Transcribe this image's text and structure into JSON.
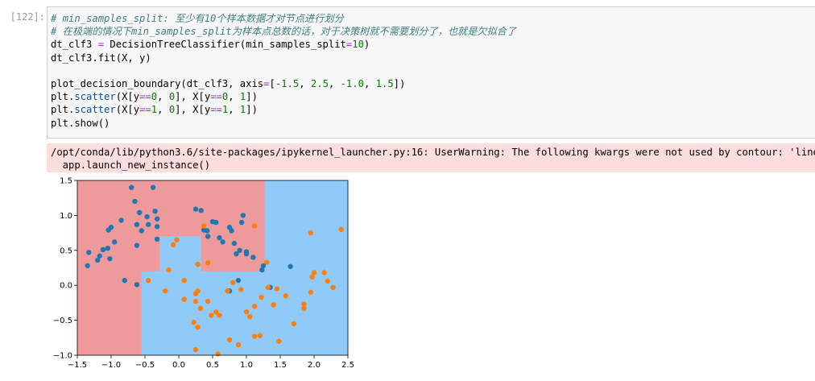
{
  "cell": {
    "prompt": "[122]:",
    "code_lines": {
      "l1": "# min_samples_split: 至少有10个样本数据才对节点进行划分",
      "l2": "# 在极端的情况下min_samples_split为样本点总数的话，对于决策树就不需要划分了，也就是欠拟合了",
      "l3a": "dt_clf3 ",
      "l3b": "=",
      "l3c": " DecisionTreeClassifier(min_samples_split",
      "l3d": "=",
      "l3e": "10",
      "l3f": ")",
      "l4": "dt_clf3.fit(X, y)",
      "l6a": "plot_decision_boundary(dt_clf3, axis",
      "l6b": "=",
      "l6c": "[",
      "l6d": "-1.5",
      "l6e": ", ",
      "l6f": "2.5",
      "l6g": ", ",
      "l6h": "-1.0",
      "l6i": ", ",
      "l6j": "1.5",
      "l6k": "])",
      "l7a": "plt.",
      "l7b": "scatter",
      "l7c": "(X[y",
      "l7d": "==",
      "l7e": "0",
      "l7f": ", ",
      "l7g": "0",
      "l7h": "], X[y",
      "l7i": "==",
      "l7j": "0",
      "l7k": ", ",
      "l7l": "1",
      "l7m": "])",
      "l8a": "plt.",
      "l8b": "scatter",
      "l8c": "(X[y",
      "l8d": "==",
      "l8e": "1",
      "l8f": ", ",
      "l8g": "0",
      "l8h": "], X[y",
      "l8i": "==",
      "l8j": "1",
      "l8k": ", ",
      "l8l": "1",
      "l8m": "])",
      "l9": "plt.show()"
    }
  },
  "stderr": {
    "line1": "/opt/conda/lib/python3.6/site-packages/ipykernel_launcher.py:16: UserWarning: The following kwargs were not used by contour: 'linewid",
    "line2": "  app.launch_new_instance()"
  },
  "colors": {
    "region0": "#ef9a9a",
    "region1": "#90caf9",
    "class0": "#1f77b4",
    "class1": "#ff7f0e"
  },
  "chart_data": {
    "type": "scatter",
    "xlim": [
      -1.5,
      2.5
    ],
    "ylim": [
      -1.0,
      1.5
    ],
    "xticks": [
      "−1.5",
      "−1.0",
      "−0.5",
      "0.0",
      "0.5",
      "1.0",
      "1.5",
      "2.0",
      "2.5"
    ],
    "yticks": [
      "−1.0",
      "−0.5",
      "0.0",
      "0.5",
      "1.0",
      "1.5"
    ],
    "xtick_values": [
      -1.5,
      -1.0,
      -0.5,
      0.0,
      0.5,
      1.0,
      1.5,
      2.0,
      2.5
    ],
    "ytick_values": [
      -1.0,
      -0.5,
      0.0,
      0.5,
      1.0,
      1.5
    ],
    "decision_regions_class1": [
      [
        1.27,
        1.5,
        2.5,
        -1.0
      ],
      [
        -0.55,
        0.2,
        1.27,
        -1.0
      ],
      [
        -0.28,
        0.7,
        0.33,
        0.2
      ]
    ],
    "series": [
      {
        "name": "y==0",
        "points": [
          [
            -1.35,
            0.28
          ],
          [
            -1.33,
            0.47
          ],
          [
            -1.2,
            0.36
          ],
          [
            -1.17,
            0.42
          ],
          [
            -1.12,
            0.51
          ],
          [
            -1.04,
            0.79
          ],
          [
            -1.0,
            0.83
          ],
          [
            -0.95,
            0.62
          ],
          [
            -1.05,
            0.53
          ],
          [
            -1.02,
            0.38
          ],
          [
            -0.85,
            0.93
          ],
          [
            -0.7,
            1.4
          ],
          [
            -0.65,
            1.2
          ],
          [
            -0.58,
            1.04
          ],
          [
            -0.62,
            0.87
          ],
          [
            -0.62,
            0.57
          ],
          [
            -0.55,
            0.78
          ],
          [
            -0.47,
            0.98
          ],
          [
            -0.45,
            0.87
          ],
          [
            -0.38,
            1.4
          ],
          [
            -0.35,
            1.06
          ],
          [
            -0.32,
            0.95
          ],
          [
            -0.32,
            0.84
          ],
          [
            -0.32,
            0.66
          ],
          [
            -0.8,
            0.07
          ],
          [
            -0.62,
            0.01
          ],
          [
            0.25,
            1.09
          ],
          [
            0.33,
            1.07
          ],
          [
            0.37,
            0.79
          ],
          [
            0.42,
            0.78
          ],
          [
            0.43,
            0.7
          ],
          [
            0.5,
            0.91
          ],
          [
            0.55,
            0.9
          ],
          [
            0.6,
            0.68
          ],
          [
            0.65,
            0.62
          ],
          [
            0.75,
            0.83
          ],
          [
            0.78,
            0.78
          ],
          [
            0.82,
            0.6
          ],
          [
            0.85,
            0.45
          ],
          [
            0.9,
            0.5
          ],
          [
            0.93,
            0.9
          ],
          [
            0.95,
            1.0
          ],
          [
            1.0,
            0.48
          ],
          [
            1.0,
            0.45
          ],
          [
            1.1,
            0.4
          ],
          [
            1.23,
            0.22
          ],
          [
            1.25,
            0.28
          ],
          [
            0.88,
            0.07
          ],
          [
            0.75,
            -0.08
          ],
          [
            1.35,
            -0.03
          ],
          [
            1.65,
            0.27
          ]
        ]
      },
      {
        "name": "y==1",
        "points": [
          [
            -0.45,
            0.07
          ],
          [
            -0.15,
            0.22
          ],
          [
            -0.08,
            0.58
          ],
          [
            -0.03,
            0.65
          ],
          [
            0.08,
            0.07
          ],
          [
            0.08,
            -0.2
          ],
          [
            -0.2,
            -0.08
          ],
          [
            0.28,
            0.3
          ],
          [
            0.25,
            -0.12
          ],
          [
            0.28,
            -0.08
          ],
          [
            0.25,
            -0.23
          ],
          [
            0.32,
            -0.33
          ],
          [
            0.43,
            0.32
          ],
          [
            0.43,
            -0.23
          ],
          [
            0.48,
            -0.43
          ],
          [
            0.22,
            -0.53
          ],
          [
            0.28,
            -0.6
          ],
          [
            0.25,
            -0.92
          ],
          [
            0.55,
            -0.38
          ],
          [
            0.6,
            -0.43
          ],
          [
            0.58,
            -0.98
          ],
          [
            0.72,
            -0.08
          ],
          [
            0.75,
            -0.78
          ],
          [
            0.8,
            0.04
          ],
          [
            0.88,
            -0.85
          ],
          [
            0.92,
            -0.06
          ],
          [
            1.0,
            -0.38
          ],
          [
            1.05,
            -0.45
          ],
          [
            1.12,
            -0.3
          ],
          [
            1.12,
            -0.73
          ],
          [
            1.2,
            -0.72
          ],
          [
            1.22,
            -0.17
          ],
          [
            1.3,
            0.33
          ],
          [
            1.32,
            -0.03
          ],
          [
            1.4,
            -0.28
          ],
          [
            1.45,
            -0.05
          ],
          [
            1.48,
            -0.8
          ],
          [
            1.58,
            -0.15
          ],
          [
            1.7,
            -0.55
          ],
          [
            1.85,
            -0.33
          ],
          [
            1.85,
            -0.27
          ],
          [
            1.95,
            -0.1
          ],
          [
            1.97,
            0.12
          ],
          [
            2.0,
            0.18
          ],
          [
            2.15,
            0.18
          ],
          [
            2.2,
            0.06
          ],
          [
            2.28,
            -0.03
          ],
          [
            2.4,
            0.8
          ],
          [
            1.95,
            0.75
          ],
          [
            1.12,
            0.85
          ],
          [
            0.37,
            0.85
          ]
        ]
      }
    ]
  }
}
